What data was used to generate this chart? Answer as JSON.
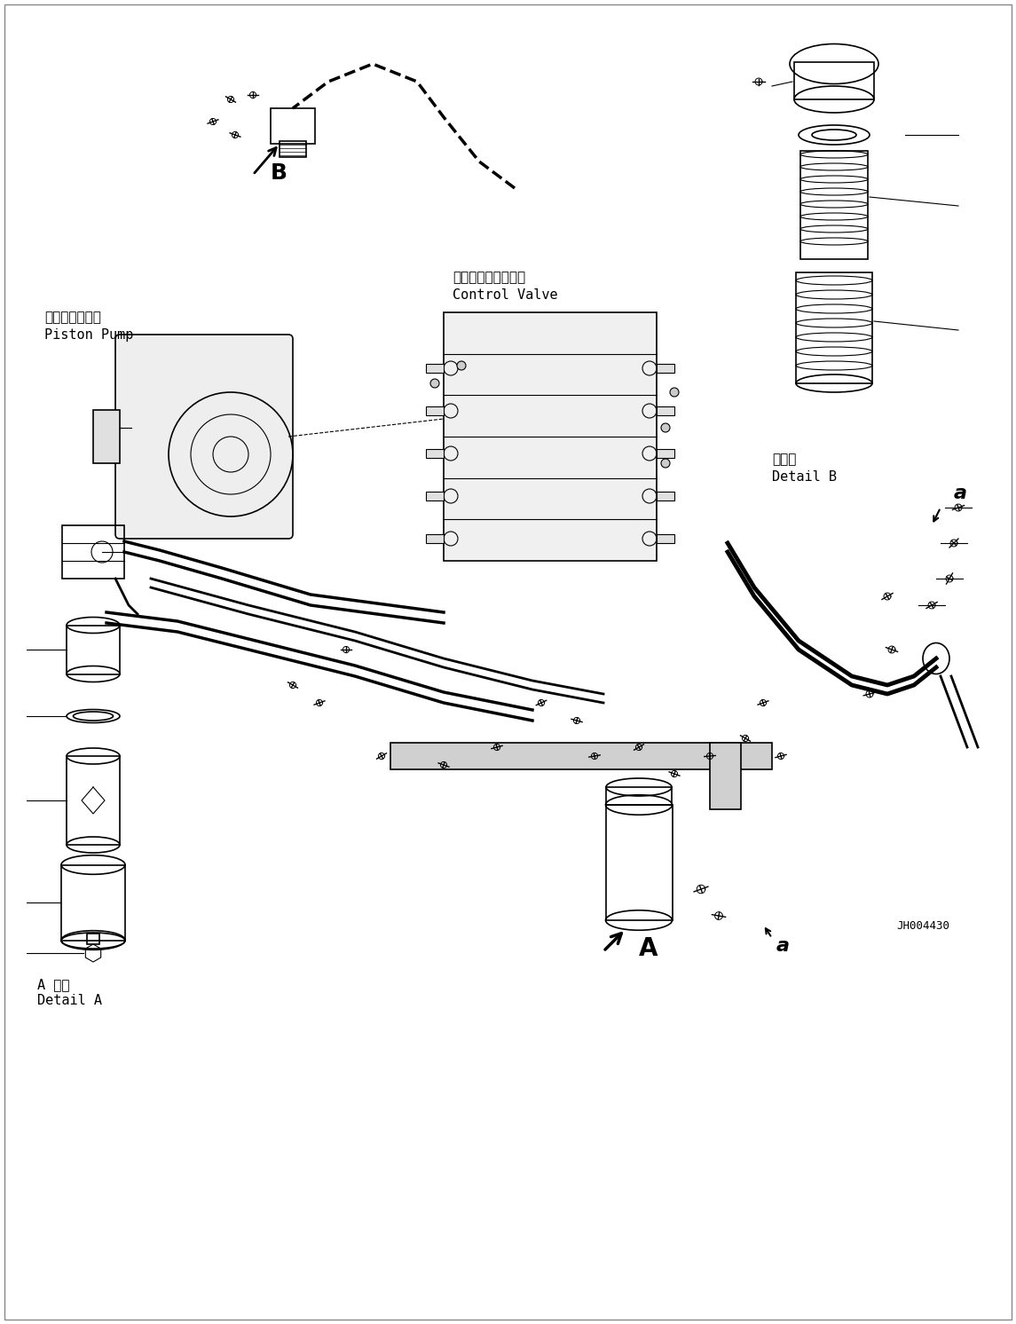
{
  "bg_color": "#ffffff",
  "line_color": "#000000",
  "fig_width": 11.45,
  "fig_height": 14.92,
  "dpi": 100,
  "labels": {
    "control_valve_jp": "コントロールバルブ",
    "control_valve_en": "Control Valve",
    "piston_pump_jp": "ピストンポンプ",
    "piston_pump_en": "Piston Pump",
    "detail_b_jp": "日詳細",
    "detail_b_en": "Detail B",
    "detail_a_jp": "A 詳細",
    "detail_a_en": "Detail A",
    "label_A": "A",
    "label_B": "B",
    "label_a1": "a",
    "label_a2": "a",
    "part_num": "JH004430"
  },
  "font_size_label": 13,
  "font_size_small": 11,
  "font_size_partnum": 9
}
